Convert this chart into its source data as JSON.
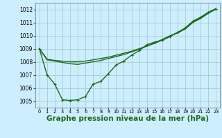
{
  "background_color": "#cceeff",
  "grid_color": "#aacccc",
  "line_color": "#1a6b1a",
  "xlabel": "Graphe pression niveau de la mer (hPa)",
  "xlabel_fontsize": 7.5,
  "ylim": [
    1004.5,
    1012.5
  ],
  "xlim": [
    -0.5,
    23.5
  ],
  "yticks": [
    1005,
    1006,
    1007,
    1008,
    1009,
    1010,
    1011,
    1012
  ],
  "xticks": [
    0,
    1,
    2,
    3,
    4,
    5,
    6,
    7,
    8,
    9,
    10,
    11,
    12,
    13,
    14,
    15,
    16,
    17,
    18,
    19,
    20,
    21,
    22,
    23
  ],
  "series": [
    {
      "x": [
        0,
        1,
        2,
        3,
        4,
        5,
        6,
        7,
        8,
        9,
        10,
        11,
        12,
        13,
        14,
        15,
        16,
        17,
        18,
        19,
        20,
        21,
        22,
        23
      ],
      "y": [
        1009.0,
        1008.2,
        1008.1,
        1008.05,
        1008.0,
        1008.0,
        1008.05,
        1008.15,
        1008.25,
        1008.35,
        1008.5,
        1008.65,
        1008.8,
        1009.0,
        1009.2,
        1009.4,
        1009.65,
        1009.95,
        1010.2,
        1010.5,
        1011.0,
        1011.3,
        1011.7,
        1012.0
      ],
      "marker": null,
      "linewidth": 1.0
    },
    {
      "x": [
        0,
        1,
        2,
        3,
        4,
        5,
        6,
        7,
        8,
        9,
        10,
        11,
        12,
        13,
        14,
        15,
        16,
        17,
        18,
        19,
        20,
        21,
        22,
        23
      ],
      "y": [
        1009.0,
        1008.15,
        1008.05,
        1007.95,
        1007.85,
        1007.8,
        1007.9,
        1008.0,
        1008.1,
        1008.25,
        1008.4,
        1008.55,
        1008.75,
        1008.95,
        1009.2,
        1009.42,
        1009.7,
        1009.98,
        1010.22,
        1010.52,
        1011.05,
        1011.35,
        1011.72,
        1012.05
      ],
      "marker": null,
      "linewidth": 1.0
    },
    {
      "x": [
        0,
        1,
        2,
        3,
        4,
        5,
        6,
        7,
        8,
        9,
        10,
        11,
        12,
        13,
        14,
        15,
        16,
        17,
        18,
        19,
        20,
        21,
        22,
        23
      ],
      "y": [
        1009.0,
        1007.0,
        1006.3,
        1005.1,
        1005.05,
        1005.1,
        1005.35,
        1006.3,
        1006.5,
        1007.1,
        1007.75,
        1008.05,
        1008.5,
        1008.85,
        1009.3,
        1009.5,
        1009.65,
        1009.9,
        1010.25,
        1010.58,
        1011.1,
        1011.4,
        1011.78,
        1012.05
      ],
      "marker": "+",
      "linewidth": 1.0,
      "markersize": 3.5
    }
  ]
}
